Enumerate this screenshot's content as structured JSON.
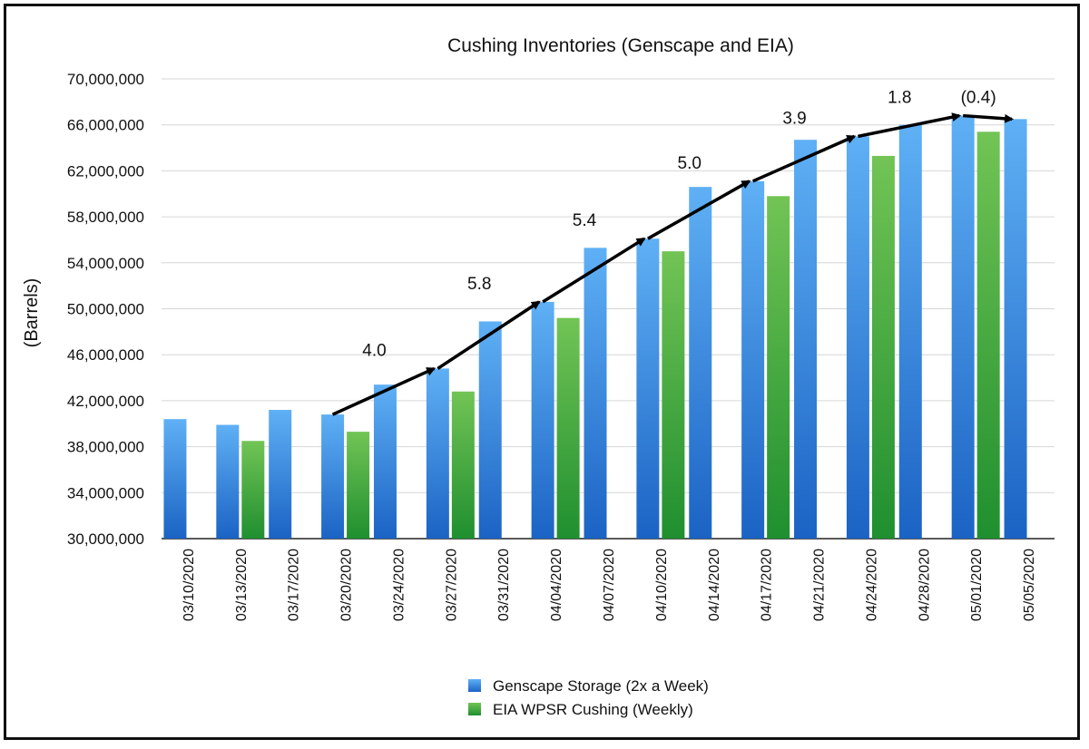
{
  "chart_data": {
    "type": "bar",
    "title": "Cushing Inventories (Genscape and EIA)",
    "xlabel": "",
    "ylabel": "(Barrels)",
    "ylim": [
      30000000,
      70000000
    ],
    "yticks": [
      30000000,
      34000000,
      38000000,
      42000000,
      46000000,
      50000000,
      54000000,
      58000000,
      62000000,
      66000000,
      70000000
    ],
    "ytick_labels": [
      "30,000,000",
      "34,000,000",
      "38,000,000",
      "42,000,000",
      "46,000,000",
      "50,000,000",
      "54,000,000",
      "58,000,000",
      "62,000,000",
      "66,000,000",
      "70,000,000"
    ],
    "grid": true,
    "legend_position": "bottom-center",
    "categories": [
      "03/10/2020",
      "03/13/2020",
      "03/17/2020",
      "03/20/2020",
      "03/24/2020",
      "03/27/2020",
      "03/31/2020",
      "04/04/2020",
      "04/07/2020",
      "04/10/2020",
      "04/14/2020",
      "04/17/2020",
      "04/21/2020",
      "04/24/2020",
      "04/28/2020",
      "05/01/2020",
      "05/05/2020"
    ],
    "series": [
      {
        "name": "Genscape Storage (2x a Week)",
        "color": "#3d8fe0",
        "values": [
          40400000,
          39900000,
          41200000,
          40800000,
          43400000,
          44800000,
          48900000,
          50600000,
          55300000,
          56100000,
          60600000,
          61100000,
          64700000,
          65000000,
          66000000,
          66800000,
          66500000
        ]
      },
      {
        "name": "EIA WPSR Cushing (Weekly)",
        "color": "#3caa3c",
        "values": [
          null,
          38500000,
          null,
          39300000,
          null,
          42800000,
          null,
          49200000,
          null,
          55000000,
          null,
          59800000,
          null,
          63300000,
          null,
          65400000,
          null
        ]
      }
    ],
    "annotations": [
      {
        "label": "4.0",
        "from_index": 3,
        "to_index": 5
      },
      {
        "label": "5.8",
        "from_index": 5,
        "to_index": 7
      },
      {
        "label": "5.4",
        "from_index": 7,
        "to_index": 9
      },
      {
        "label": "5.0",
        "from_index": 9,
        "to_index": 11
      },
      {
        "label": "3.9",
        "from_index": 11,
        "to_index": 13
      },
      {
        "label": "1.8",
        "from_index": 13,
        "to_index": 15
      },
      {
        "label": "(0.4)",
        "from_index": 15,
        "to_index": 16
      }
    ]
  }
}
